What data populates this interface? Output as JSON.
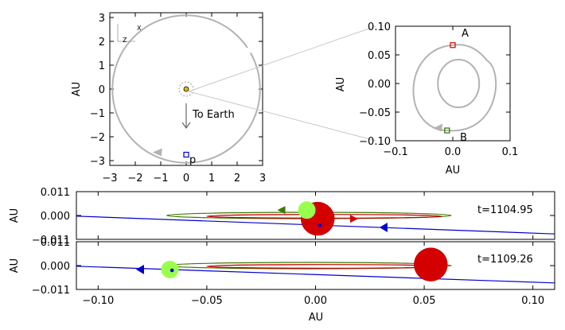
{
  "chart_data": [
    {
      "type": "scatter",
      "name": "orbit-overview",
      "xlabel": "",
      "ylabel": "AU",
      "xlim": [
        -3.0,
        3.0
      ],
      "ylim": [
        -3.2,
        3.2
      ],
      "xticks": [
        "−3",
        "−2",
        "−1",
        "0",
        "1",
        "2",
        "3"
      ],
      "yticks": [
        "3",
        "2",
        "1",
        "0",
        "−1",
        "−2",
        "−3"
      ],
      "orbit_radius": 2.9,
      "direction_arrow": [
        -1.1,
        -2.65
      ],
      "point_p": {
        "label": "p",
        "x": 0.0,
        "y": -2.75
      },
      "axis_hints": {
        "x": "X",
        "z": "Z"
      },
      "annotation": "To Earth"
    },
    {
      "type": "scatter",
      "name": "inner-zoom",
      "xlabel": "AU",
      "ylabel": "AU",
      "xlim": [
        -0.1,
        0.1
      ],
      "ylim": [
        -0.1,
        0.1
      ],
      "xticks": [
        "−0.1",
        "0.0",
        "0.1"
      ],
      "yticks": [
        "0.10",
        "0.05",
        "0.00",
        "−0.05",
        "−0.10"
      ],
      "point_A": {
        "label": "A",
        "x": 0.0,
        "y": 0.067
      },
      "point_B": {
        "label": "B",
        "x": -0.01,
        "y": -0.082
      }
    },
    {
      "type": "line",
      "name": "edge-on-projection",
      "xlabel": "AU",
      "ylabel": "AU",
      "xlim": [
        -0.11,
        0.11
      ],
      "ylim": [
        -0.011,
        0.011
      ],
      "xticks": [
        "−0.10",
        "−0.05",
        "0.00",
        "0.05",
        "0.10"
      ],
      "yticks": [
        "0.011",
        "0.000",
        "−0.011"
      ],
      "panels": [
        {
          "label": "t=1104.95",
          "line": [
            [
              -0.11,
              -0.0003
            ],
            [
              0.11,
              -0.0085
            ]
          ],
          "line_point": {
            "x": 0.002,
            "y": -0.0045
          },
          "line_arrow": {
            "x": 0.032,
            "y": -0.0055
          },
          "green_orbit_arrow": {
            "x": -0.015,
            "y": 0.0025
          },
          "red_orbit_arrow": {
            "x": 0.017,
            "y": -0.0015
          },
          "green_body": {
            "x": -0.004,
            "y": 0.0025
          },
          "red_body": {
            "x": 0.001,
            "y": -0.0015
          }
        },
        {
          "label": "t=1109.26",
          "line": [
            [
              -0.11,
              -0.0003
            ],
            [
              0.11,
              -0.008
            ]
          ],
          "line_point": {
            "x": -0.066,
            "y": -0.0022
          },
          "line_arrow": {
            "x": -0.08,
            "y": -0.0018
          },
          "green_orbit_arrow": null,
          "red_orbit_arrow": null,
          "green_body": {
            "x": -0.067,
            "y": -0.0018
          },
          "red_body": {
            "x": 0.053,
            "y": 0.0005
          }
        }
      ]
    }
  ],
  "colors": {
    "orbit": "#b3b3b3",
    "red": "#d40000",
    "green": "#99ff4d",
    "dark_green": "#2f6f00",
    "blue": "#0000cc",
    "orbit_red": "#c00000",
    "orbit_green": "#3a7a00"
  }
}
